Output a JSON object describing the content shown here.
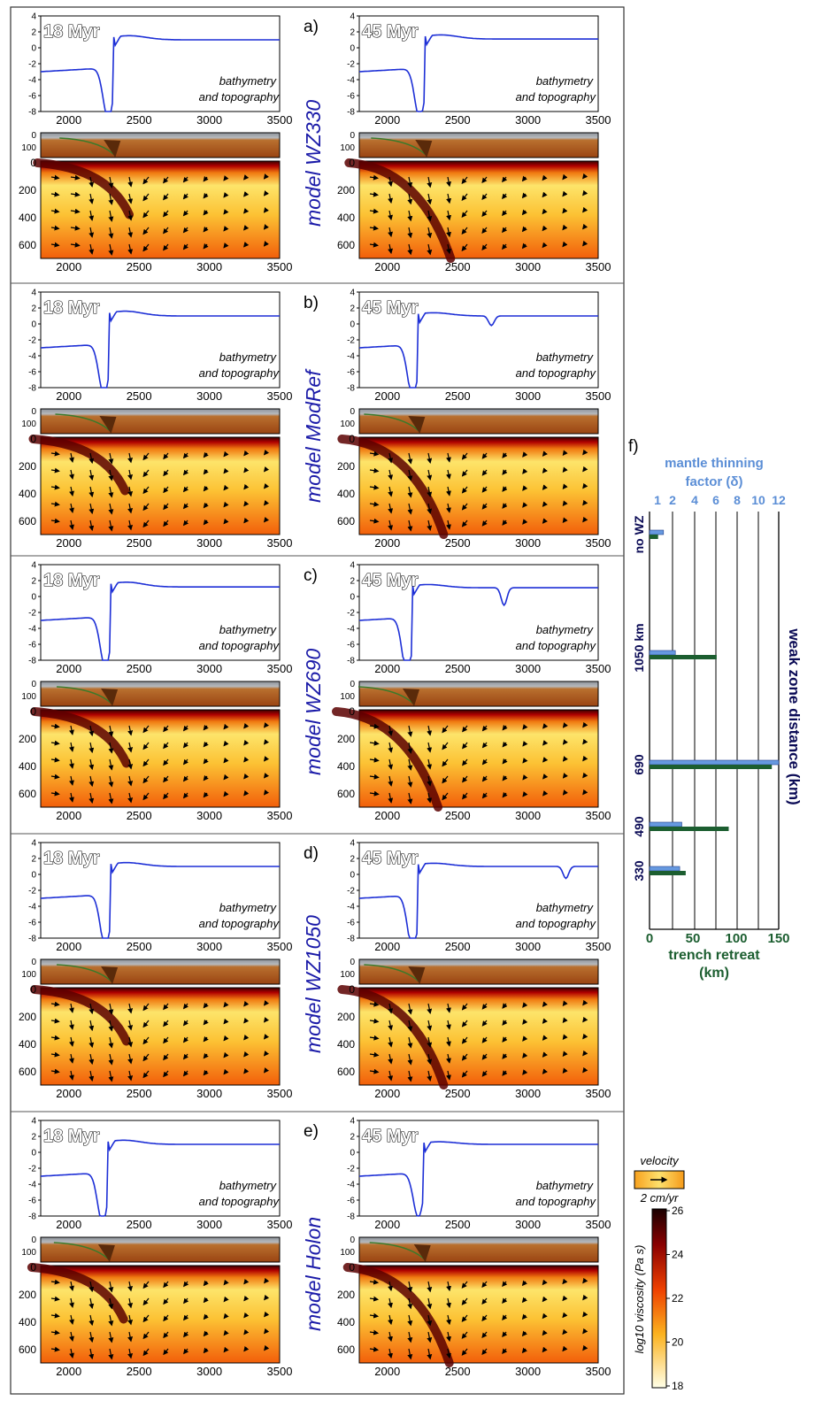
{
  "figure": {
    "rows": [
      {
        "letter": "a)",
        "model": "model WZ330"
      },
      {
        "letter": "b)",
        "model": "model ModRef"
      },
      {
        "letter": "c)",
        "model": "model WZ690"
      },
      {
        "letter": "d)",
        "model": "model WZ1050"
      },
      {
        "letter": "e)",
        "model": "model Holon"
      }
    ],
    "times": [
      "18 Myr",
      "45 Myr"
    ],
    "bathy_caption": [
      "bathymetry",
      "and topography"
    ],
    "bathy_yticks": [
      "4",
      "2",
      "0",
      "-2",
      "-4",
      "-6",
      "-8"
    ],
    "x_ticks": [
      "2000",
      "2500",
      "3000",
      "3500"
    ],
    "crust_ticks": [
      "0",
      "100"
    ],
    "mantle_yticks": [
      "0",
      "200",
      "400",
      "600"
    ],
    "profiles": {
      "a_left": {
        "trench_x": 2280,
        "depth": -7.2,
        "bump": 1.3,
        "farside": 1.0
      },
      "a_right": {
        "trench_x": 2230,
        "depth": -7.0,
        "bump": 1.3,
        "farside": 1.1
      },
      "b_left": {
        "trench_x": 2250,
        "depth": -7.2,
        "bump": 1.5,
        "farside": 1.0
      },
      "b_right": {
        "trench_x": 2180,
        "depth": -7.5,
        "bump": 1.0,
        "farside": 1.0,
        "second_trench_x": 2740,
        "second_depth": -1.2
      },
      "c_left": {
        "trench_x": 2260,
        "depth": -7.2,
        "bump": 1.5,
        "farside": 1.2
      },
      "c_right": {
        "trench_x": 2140,
        "depth": -7.8,
        "bump": 1.0,
        "farside": 1.1,
        "second_trench_x": 2830,
        "second_depth": -2.2
      },
      "d_left": {
        "trench_x": 2260,
        "depth": -7.5,
        "bump": 1.2,
        "farside": 1.0
      },
      "d_right": {
        "trench_x": 2180,
        "depth": -7.8,
        "bump": 1.0,
        "farside": 1.0,
        "second_trench_x": 3270,
        "second_depth": -1.5
      },
      "e_left": {
        "trench_x": 2240,
        "depth": -7.0,
        "bump": 1.3,
        "farside": 1.0
      },
      "e_right": {
        "trench_x": 2220,
        "depth": -6.2,
        "bump": 0.8,
        "farside": 1.0
      }
    }
  },
  "panel_f": {
    "letter": "f)",
    "top_axis_title": [
      "mantle thinning",
      "factor (δ)"
    ],
    "top_ticks": [
      "1",
      "2",
      "4",
      "6",
      "8",
      "10",
      "12"
    ],
    "bottom_axis_title": [
      "trench retreat",
      "(km)"
    ],
    "bottom_ticks": [
      "0",
      "50",
      "100",
      "150"
    ],
    "right_axis_title": "weak zone distance (km)",
    "categories": [
      "no WZ",
      "1050 km",
      "690",
      "490",
      "330"
    ],
    "chart_data": {
      "type": "bar",
      "orientation": "horizontal",
      "categories": [
        "no WZ",
        "1050 km",
        "690",
        "490",
        "330"
      ],
      "series": [
        {
          "name": "mantle thinning factor (δ)",
          "values": [
            1.3,
            2.4,
            12.0,
            3.0,
            2.8
          ],
          "color": "#6699e0"
        },
        {
          "name": "trench retreat (km)",
          "values": [
            10,
            78,
            142,
            92,
            42
          ],
          "color": "#1c5e30"
        }
      ],
      "xlim_bottom": [
        0,
        150
      ],
      "xlim_top": [
        1,
        12
      ]
    },
    "top_color": "#5b8ed6",
    "bottom_color": "#1c5e30",
    "label_color": "#0a0a55"
  },
  "legend": {
    "velocity_title": "velocity",
    "velocity_unit": "2 cm/yr",
    "viscosity_title": "log10 viscosity (Pa s)",
    "viscosity_ticks": [
      "26",
      "24",
      "22",
      "20",
      "18"
    ]
  },
  "colors": {
    "model_label": "#1a1aa8",
    "profile_line": "#1d2fd6",
    "crust_brown": "#a84e17",
    "crust_dark": "#5a2a0a",
    "water_gray": "#9aa1a8"
  }
}
